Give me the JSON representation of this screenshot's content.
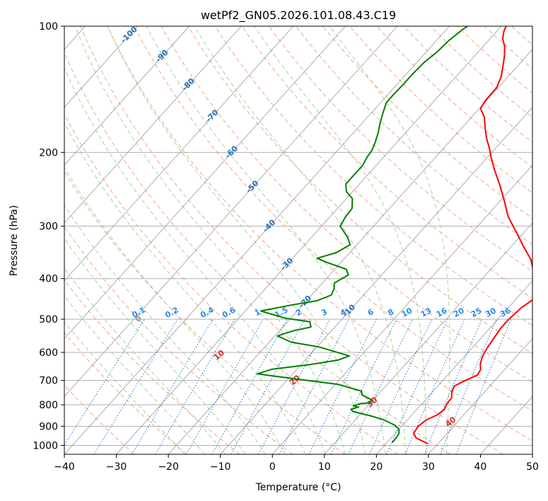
{
  "colors": {
    "grid": "#b0b0b0",
    "isotherm": "#9a9a9a",
    "dry_adiabat": "#f4a58a",
    "moist_adiabat": "#a7d3a0",
    "mixing_ratio": "#1f77d0",
    "mixing_label": "#2a8bea",
    "dry_label": "#d62728",
    "moist_label": "#2171b5",
    "temperature": "#ff0000",
    "dewpoint": "#008000",
    "outer_curve": "#cdb79e"
  },
  "chart_data": {
    "type": "line",
    "title": "wetPf2_GN05.2026.101.08.43.C19",
    "xlabel": "Temperature (°C)",
    "ylabel": "Pressure (hPa)",
    "xlim": [
      -40,
      50
    ],
    "ylim": [
      1050,
      100
    ],
    "y_scale": "log",
    "grid": true,
    "x_ticks": [
      "−40",
      "−30",
      "−20",
      "−10",
      "0",
      "10",
      "20",
      "30",
      "40",
      "50"
    ],
    "y_ticks": [
      "100",
      "200",
      "300",
      "400",
      "500",
      "600",
      "700",
      "800",
      "900",
      "1000"
    ],
    "isotherm_label_values": [
      "-100",
      "-90",
      "-80",
      "-70",
      "-60",
      "-50",
      "-40",
      "-30",
      "-20",
      "-10"
    ],
    "mixing_ratio_labels": [
      "0.1",
      "0.2",
      "0.4",
      "0.6",
      "1",
      "1.5",
      "2",
      "3",
      "4",
      "6",
      "8",
      "10",
      "13",
      "16",
      "20",
      "25",
      "30",
      "36"
    ],
    "dry_adiabat_labels": [
      "0",
      "10",
      "20",
      "30",
      "40"
    ],
    "series": [
      {
        "role": "temperature",
        "points": [
          [
            28.0,
            990
          ],
          [
            24.8,
            960
          ],
          [
            23.5,
            935
          ],
          [
            23.2,
            900
          ],
          [
            23.6,
            870
          ],
          [
            24.9,
            845
          ],
          [
            25.3,
            820
          ],
          [
            24.8,
            795
          ],
          [
            24.7,
            770
          ],
          [
            23.7,
            745
          ],
          [
            23.2,
            722
          ],
          [
            24.3,
            700
          ],
          [
            25.7,
            680
          ],
          [
            25.4,
            660
          ],
          [
            24.4,
            640
          ],
          [
            23.5,
            615
          ],
          [
            22.9,
            585
          ],
          [
            22.5,
            555
          ],
          [
            22.1,
            525
          ],
          [
            22.1,
            500
          ],
          [
            22.5,
            470
          ],
          [
            23.5,
            445
          ],
          [
            23.0,
            425
          ],
          [
            21.5,
            410
          ],
          [
            18.6,
            385
          ],
          [
            16.0,
            360
          ],
          [
            12.3,
            335
          ],
          [
            8.5,
            310
          ],
          [
            4.3,
            285
          ],
          [
            0.6,
            260
          ],
          [
            -2.7,
            240
          ],
          [
            -6.5,
            220
          ],
          [
            -9.4,
            205
          ],
          [
            -11.3,
            195
          ],
          [
            -13.5,
            185
          ],
          [
            -15.5,
            175
          ],
          [
            -17.5,
            165
          ],
          [
            -19.8,
            157
          ],
          [
            -20.2,
            150
          ],
          [
            -20.3,
            140
          ],
          [
            -21.3,
            132
          ],
          [
            -22.7,
            125
          ],
          [
            -24.2,
            118
          ],
          [
            -25.8,
            112
          ],
          [
            -27.6,
            107
          ],
          [
            -28.6,
            103
          ],
          [
            -29.1,
            100
          ]
        ]
      },
      {
        "role": "dewpoint",
        "points": [
          [
            21.0,
            985
          ],
          [
            21.0,
            960
          ],
          [
            20.7,
            935
          ],
          [
            20.0,
            915
          ],
          [
            18.5,
            895
          ],
          [
            15.6,
            870
          ],
          [
            12.2,
            850
          ],
          [
            8.1,
            830
          ],
          [
            7.3,
            820
          ],
          [
            8.4,
            810
          ],
          [
            7.2,
            805
          ],
          [
            8.1,
            795
          ],
          [
            9.8,
            792
          ],
          [
            9.6,
            778
          ],
          [
            7.0,
            758
          ],
          [
            6.2,
            742
          ],
          [
            0.5,
            715
          ],
          [
            -10.3,
            690
          ],
          [
            -16.8,
            675
          ],
          [
            -14.8,
            658
          ],
          [
            -8.4,
            642
          ],
          [
            -3.7,
            626
          ],
          [
            -2.2,
            612
          ],
          [
            -6.1,
            596
          ],
          [
            -9.7,
            582
          ],
          [
            -15.8,
            567
          ],
          [
            -19.5,
            548
          ],
          [
            -17.2,
            532
          ],
          [
            -14.6,
            522
          ],
          [
            -15.7,
            507
          ],
          [
            -21.1,
            497
          ],
          [
            -27.0,
            478
          ],
          [
            -22.0,
            462
          ],
          [
            -18.0,
            452
          ],
          [
            -16.2,
            438
          ],
          [
            -16.8,
            422
          ],
          [
            -17.7,
            410
          ],
          [
            -16.4,
            392
          ],
          [
            -17.8,
            380
          ],
          [
            -22.7,
            366
          ],
          [
            -25.3,
            358
          ],
          [
            -22.6,
            347
          ],
          [
            -21.3,
            332
          ],
          [
            -23.2,
            318
          ],
          [
            -26.4,
            300
          ],
          [
            -27.0,
            285
          ],
          [
            -27.2,
            272
          ],
          [
            -28.8,
            258
          ],
          [
            -31.2,
            248
          ],
          [
            -32.6,
            238
          ],
          [
            -32.6,
            225
          ],
          [
            -32.6,
            215
          ],
          [
            -33.2,
            205
          ],
          [
            -33.4,
            198
          ],
          [
            -34.1,
            190
          ],
          [
            -35.2,
            180
          ],
          [
            -36.6,
            170
          ],
          [
            -37.9,
            160
          ],
          [
            -38.9,
            152
          ],
          [
            -38.9,
            145
          ],
          [
            -38.8,
            138
          ],
          [
            -38.8,
            130
          ],
          [
            -38.6,
            122
          ],
          [
            -37.9,
            115
          ],
          [
            -37.6,
            108
          ],
          [
            -36.9,
            102
          ],
          [
            -36.5,
            100
          ]
        ]
      }
    ]
  }
}
